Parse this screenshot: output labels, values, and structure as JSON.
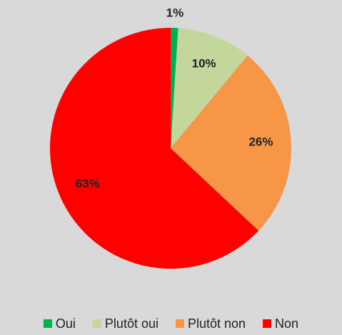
{
  "chart_data": {
    "type": "pie",
    "categories": [
      "Oui",
      "Plutôt oui",
      "Plutôt non",
      "Non"
    ],
    "values": [
      1,
      10,
      26,
      63
    ],
    "value_labels": [
      "1%",
      "10%",
      "26%",
      "63%"
    ],
    "colors": [
      "#00b050",
      "#c3d69b",
      "#f79646",
      "#ff0000"
    ],
    "legend": "bottom"
  }
}
